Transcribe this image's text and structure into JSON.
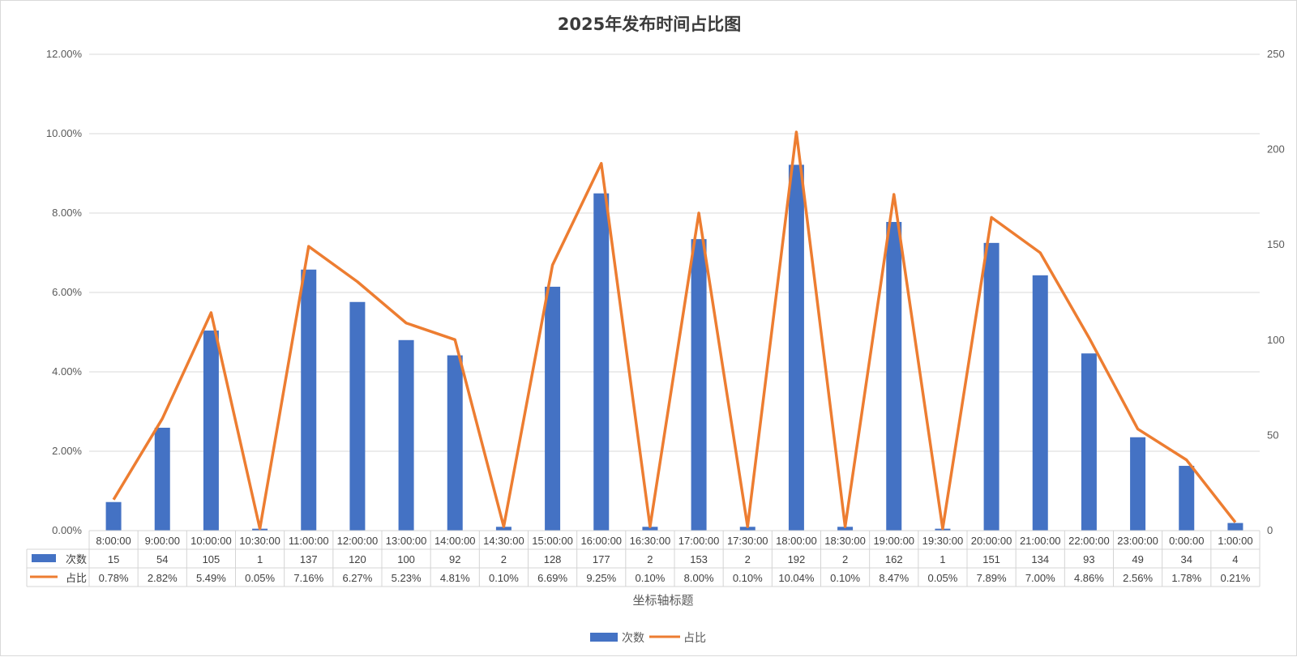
{
  "chart_data": {
    "type": "bar",
    "title": "2025年发布时间占比图",
    "xlabel": "坐标轴标题",
    "categories": [
      "8:00:00",
      "9:00:00",
      "10:00:00",
      "10:30:00",
      "11:00:00",
      "12:00:00",
      "13:00:00",
      "14:00:00",
      "14:30:00",
      "15:00:00",
      "16:00:00",
      "16:30:00",
      "17:00:00",
      "17:30:00",
      "18:00:00",
      "18:30:00",
      "19:00:00",
      "19:30:00",
      "20:00:00",
      "21:00:00",
      "22:00:00",
      "23:00:00",
      "0:00:00",
      "1:00:00"
    ],
    "series": [
      {
        "name": "次数",
        "type": "bar",
        "axis": "right",
        "color": "#4472C4",
        "values": [
          15,
          54,
          105,
          1,
          137,
          120,
          100,
          92,
          2,
          128,
          177,
          2,
          153,
          2,
          192,
          2,
          162,
          1,
          151,
          134,
          93,
          49,
          34,
          4
        ]
      },
      {
        "name": "占比",
        "type": "line",
        "axis": "left",
        "color": "#ED7D31",
        "values": [
          0.0078,
          0.0282,
          0.0549,
          0.0005,
          0.0716,
          0.0627,
          0.0523,
          0.0481,
          0.001,
          0.0669,
          0.0925,
          0.001,
          0.08,
          0.001,
          0.1004,
          0.001,
          0.0847,
          0.0005,
          0.0789,
          0.07,
          0.0486,
          0.0256,
          0.0178,
          0.0021
        ],
        "labels": [
          "0.78%",
          "2.82%",
          "5.49%",
          "0.05%",
          "7.16%",
          "6.27%",
          "5.23%",
          "4.81%",
          "0.10%",
          "6.69%",
          "9.25%",
          "0.10%",
          "8.00%",
          "0.10%",
          "10.04%",
          "0.10%",
          "8.47%",
          "0.05%",
          "7.89%",
          "7.00%",
          "4.86%",
          "2.56%",
          "1.78%",
          "0.21%"
        ]
      }
    ],
    "y_left": {
      "ylim": [
        0,
        0.12
      ],
      "ticks": [
        "0.00%",
        "2.00%",
        "4.00%",
        "6.00%",
        "8.00%",
        "10.00%",
        "12.00%"
      ]
    },
    "y_right": {
      "ylim": [
        0,
        250
      ],
      "ticks": [
        "0",
        "50",
        "100",
        "150",
        "200",
        "250"
      ]
    },
    "grid": true,
    "legend": "bottom",
    "data_table": true
  }
}
